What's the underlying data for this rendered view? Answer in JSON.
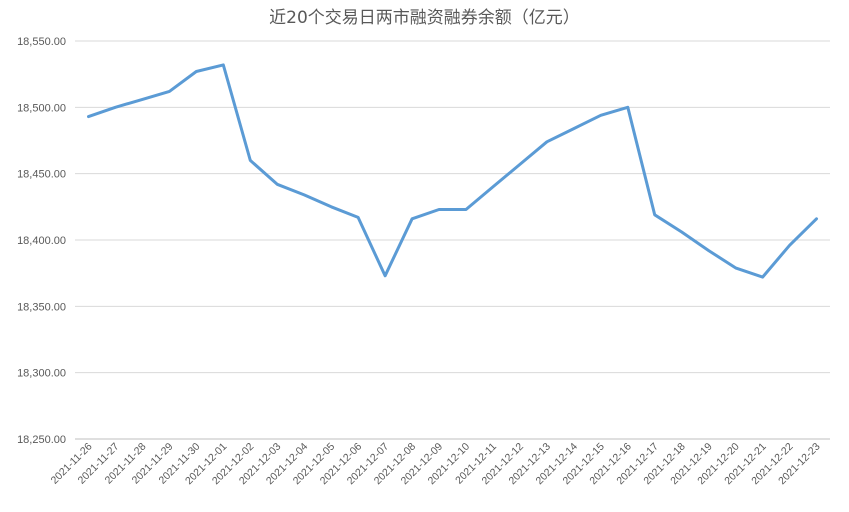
{
  "chart_data": {
    "type": "line",
    "title": "近20个交易日两市融资融券余额（亿元）",
    "xlabel": "",
    "ylabel": "",
    "ylim": [
      18250,
      18550
    ],
    "yticks": [
      "18,250.00",
      "18,300.00",
      "18,350.00",
      "18,400.00",
      "18,450.00",
      "18,500.00",
      "18,550.00"
    ],
    "ytick_values": [
      18250,
      18300,
      18350,
      18400,
      18450,
      18500,
      18550
    ],
    "grid": true,
    "legend": "none",
    "series_color": "#5b9bd5",
    "categories": [
      "2021-11-26",
      "2021-11-27",
      "2021-11-28",
      "2021-11-29",
      "2021-11-30",
      "2021-12-01",
      "2021-12-02",
      "2021-12-03",
      "2021-12-04",
      "2021-12-05",
      "2021-12-06",
      "2021-12-07",
      "2021-12-08",
      "2021-12-09",
      "2021-12-10",
      "2021-12-11",
      "2021-12-12",
      "2021-12-13",
      "2021-12-14",
      "2021-12-15",
      "2021-12-16",
      "2021-12-17",
      "2021-12-18",
      "2021-12-19",
      "2021-12-20",
      "2021-12-21",
      "2021-12-22",
      "2021-12-23"
    ],
    "series": [
      {
        "values": [
          18493,
          18500,
          18506,
          18512,
          18527,
          18532,
          18460,
          18442,
          18434,
          18425,
          18417,
          18373,
          18416,
          18423,
          18423,
          18440,
          18457,
          18474,
          18484,
          18494,
          18500,
          18419,
          18406,
          18392,
          18379,
          18372,
          18396,
          18416
        ]
      }
    ]
  }
}
